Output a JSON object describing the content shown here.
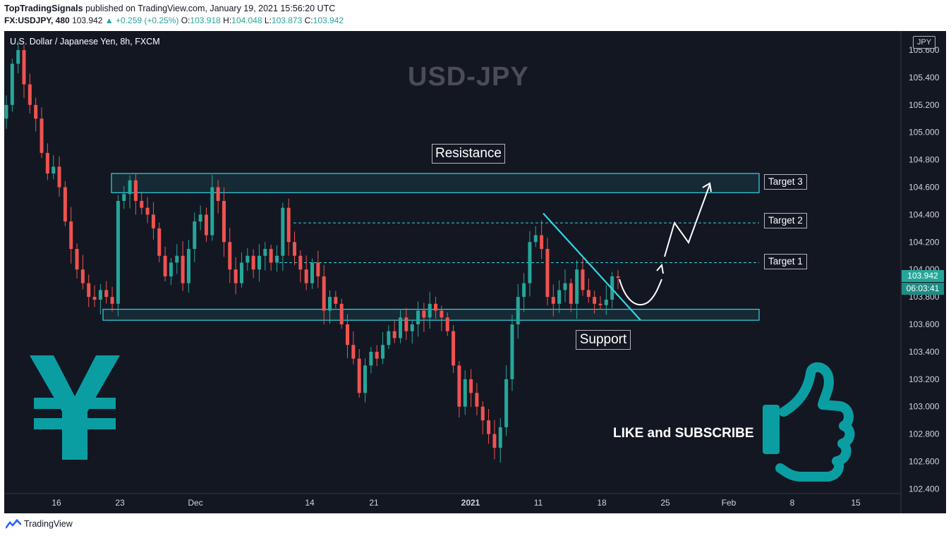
{
  "header": {
    "publisher": "TopTradingSignals",
    "published_text": "published on TradingView.com, January 19, 2021 15:56:20 UTC",
    "symbol": "FX:USDJPY, 480",
    "last": "103.942",
    "change": "▲ +0.259 (+0.25%)",
    "o_label": "O:",
    "o": "103.918",
    "h_label": "H:",
    "h": "104.048",
    "l_label": "L:",
    "l": "103.873",
    "c_label": "C:",
    "c": "103.942"
  },
  "chart_title": "U.S. Dollar / Japanese Yen, 8h, FXCM",
  "watermark": "USD-JPY",
  "currency": "JPY",
  "annotations": {
    "resistance": "Resistance",
    "support": "Support",
    "target1": "Target 1",
    "target2": "Target 2",
    "target3": "Target 3",
    "like": "LIKE and SUBSCRIBE"
  },
  "price_tags": {
    "last": "103.942",
    "countdown": "06:03:41"
  },
  "footer": {
    "brand": "TradingView"
  },
  "colors": {
    "bg": "#131722",
    "up": "#26a69a",
    "down": "#ef5350",
    "zone": "#32d6e6",
    "icon": "#0a9ea3"
  },
  "icons": [
    "yen-icon",
    "thumbs-up-icon",
    "tradingview-logo-icon"
  ],
  "chart_data": {
    "type": "candlestick",
    "y_ticks": [
      "105.600",
      "105.400",
      "105.200",
      "105.000",
      "104.800",
      "104.600",
      "104.400",
      "104.200",
      "104.000",
      "103.800",
      "103.600",
      "103.400",
      "103.200",
      "103.000",
      "102.800",
      "102.600",
      "102.400"
    ],
    "x_ticks": [
      "16",
      "23",
      "Dec",
      "14",
      "21",
      "2021",
      "11",
      "18",
      "25",
      "Feb",
      "8",
      "15"
    ],
    "ylim": [
      102.35,
      105.65
    ],
    "zones": {
      "resistance": [
        104.56,
        104.7
      ],
      "support": [
        103.63,
        103.71
      ]
    },
    "targets": {
      "target1": 104.05,
      "target2": 104.34,
      "target3": 104.62
    },
    "closes": [
      105.2,
      105.5,
      105.6,
      105.35,
      105.2,
      105.1,
      104.85,
      104.7,
      104.75,
      104.6,
      104.35,
      104.15,
      104.0,
      103.9,
      103.8,
      103.78,
      103.85,
      103.8,
      103.75,
      104.5,
      104.55,
      104.65,
      104.5,
      104.45,
      104.4,
      104.3,
      104.1,
      103.95,
      104.05,
      104.1,
      103.9,
      104.15,
      104.35,
      104.4,
      104.25,
      104.6,
      104.5,
      104.2,
      104.0,
      103.9,
      104.05,
      104.1,
      104.0,
      104.1,
      104.15,
      104.05,
      104.1,
      104.45,
      104.2,
      104.1,
      104.0,
      103.9,
      104.05,
      103.95,
      103.7,
      103.8,
      103.75,
      103.6,
      103.45,
      103.35,
      103.1,
      103.3,
      103.4,
      103.35,
      103.45,
      103.55,
      103.5,
      103.65,
      103.55,
      103.6,
      103.7,
      103.65,
      103.75,
      103.7,
      103.65,
      103.55,
      103.3,
      103.0,
      103.2,
      103.1,
      103.0,
      102.9,
      102.8,
      102.7,
      102.85,
      103.2,
      103.6,
      103.8,
      103.9,
      104.2,
      104.25,
      104.15,
      103.8,
      103.75,
      103.85,
      103.9,
      103.75,
      104.0,
      103.85,
      103.8,
      103.75,
      103.74,
      103.78,
      103.95,
      103.94
    ],
    "trendline": [
      [
        104.41,
        "Jan 11"
      ],
      [
        103.63,
        "Jan 22"
      ]
    ],
    "projection": "arrow from current price up through Target 1 and Target 2 toward Target 3"
  }
}
